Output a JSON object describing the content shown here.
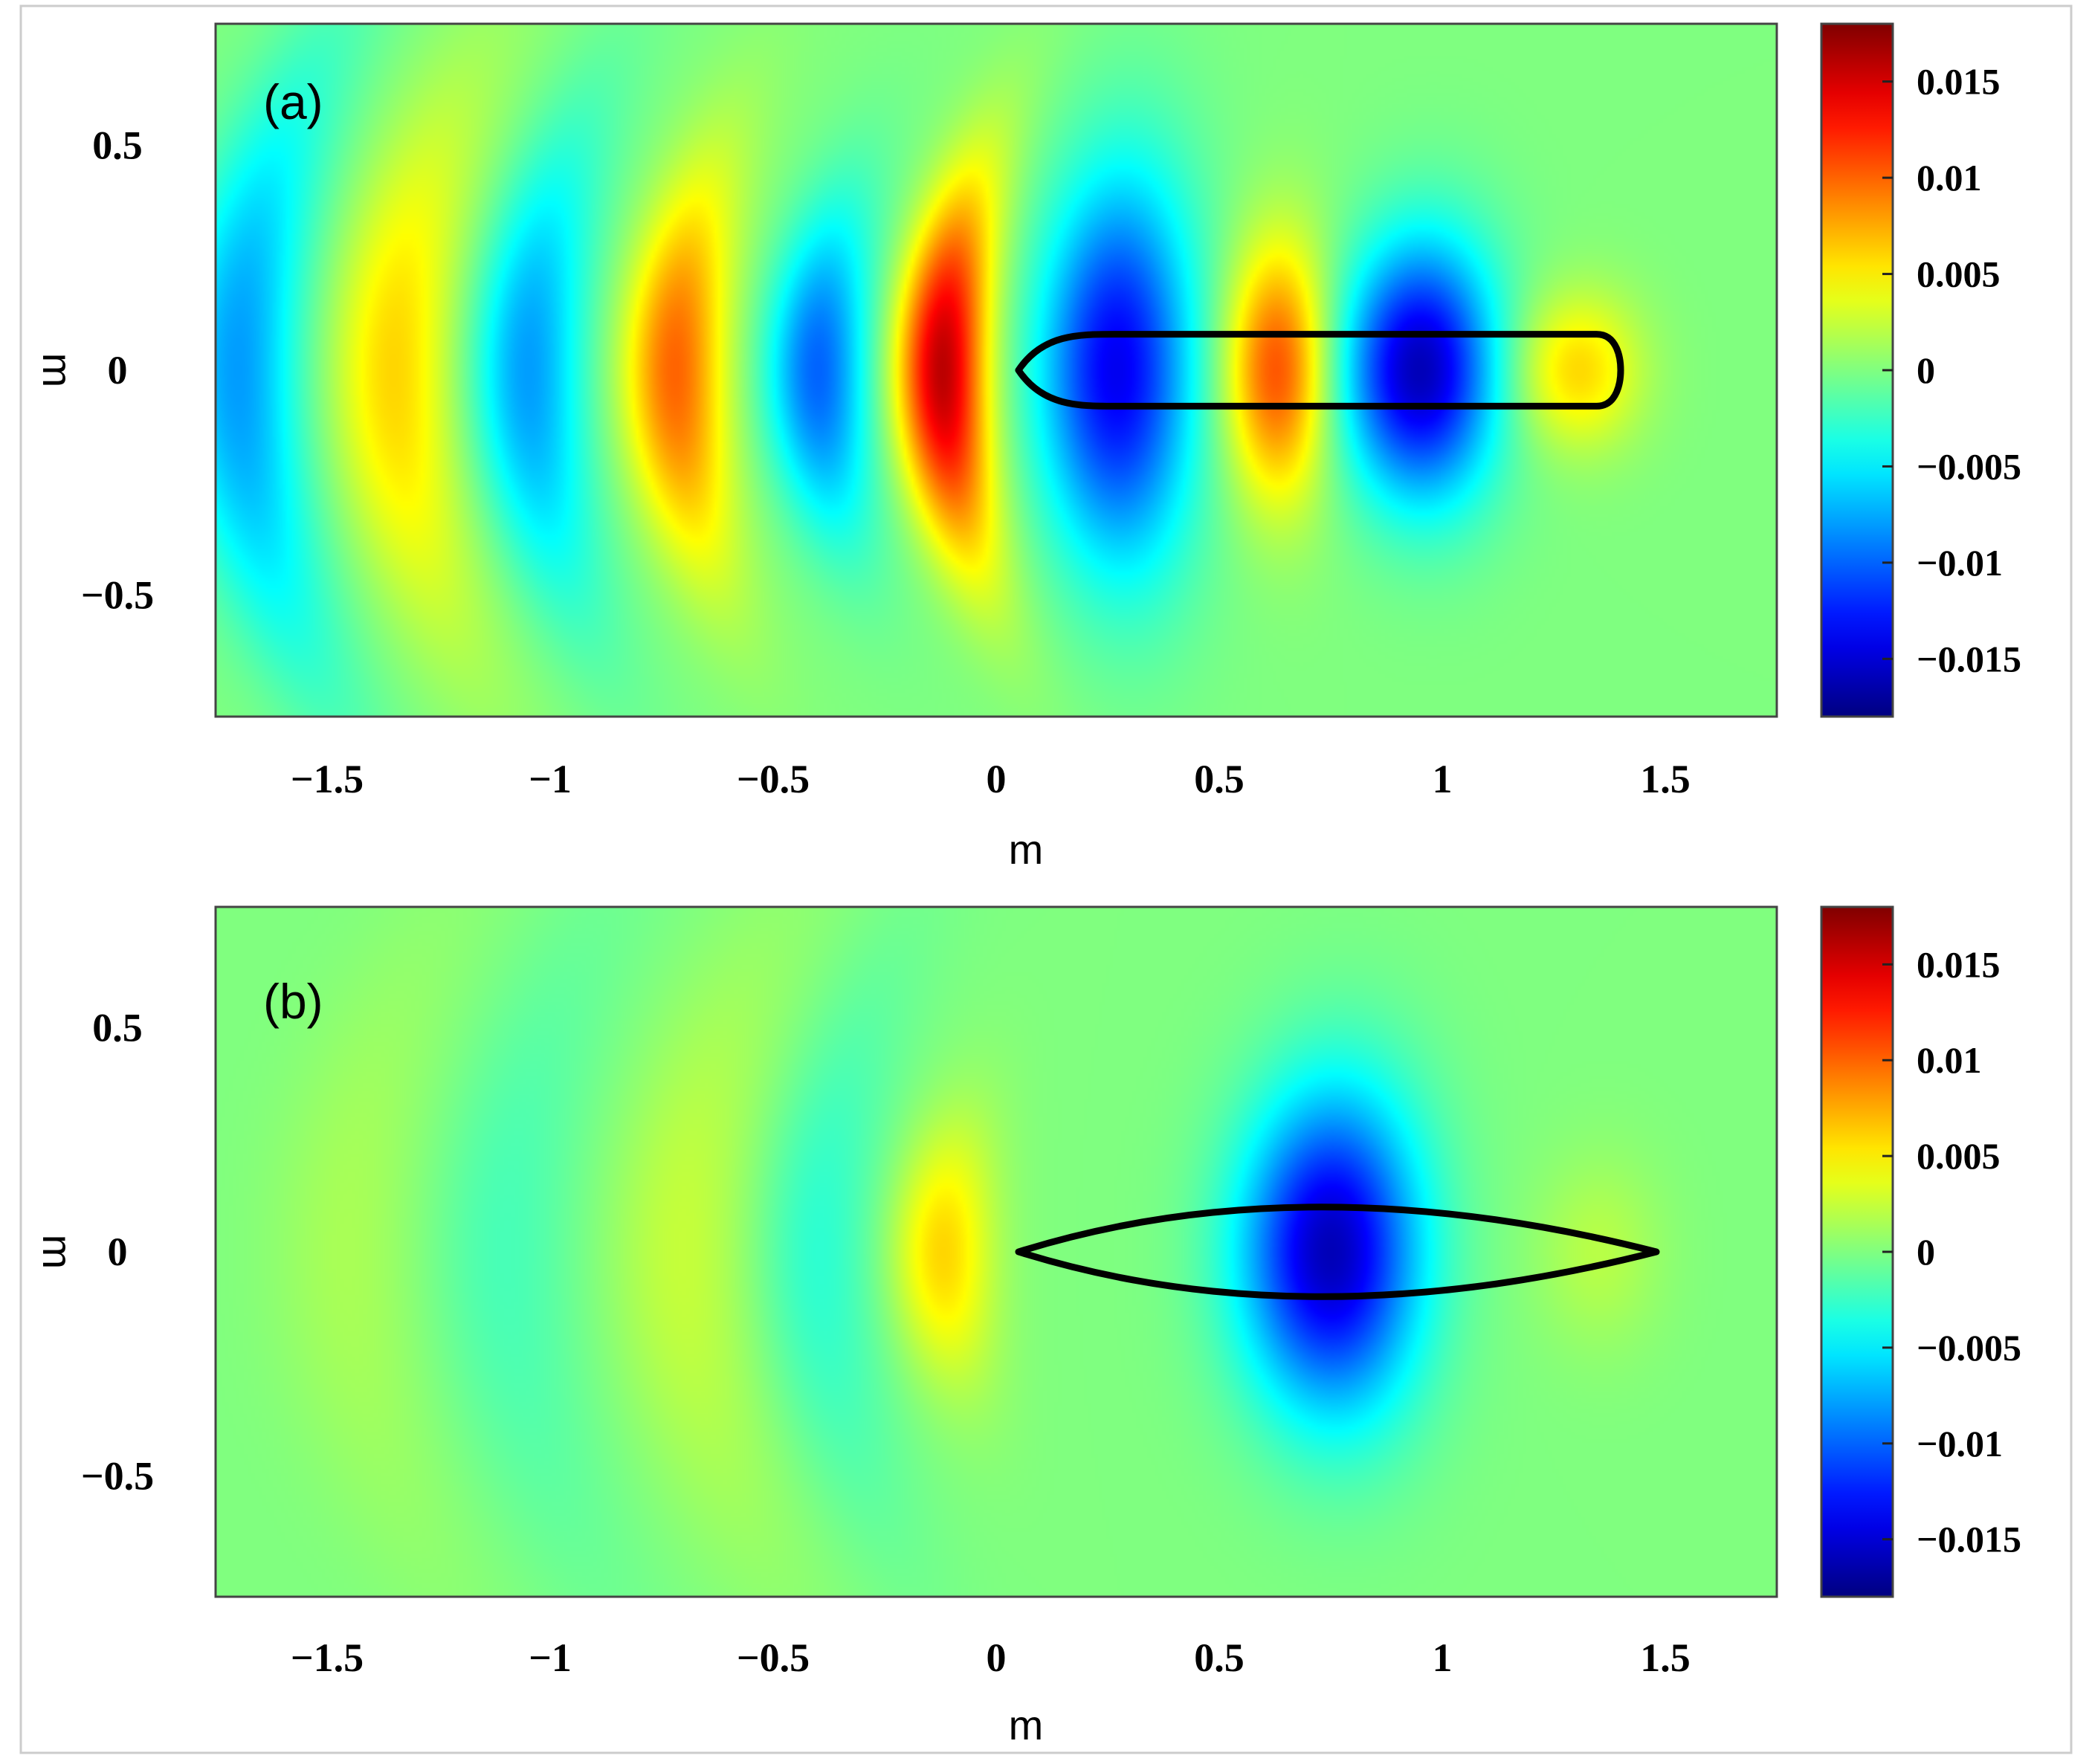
{
  "chart_data": [
    {
      "type": "heatmap",
      "panel_label": "(a)",
      "xlabel": "m",
      "ylabel": "m",
      "xlim": [
        -1.75,
        1.75
      ],
      "ylim": [
        -0.77,
        0.77
      ],
      "xticks": [
        -1.5,
        -1,
        -0.5,
        0,
        0.5,
        1,
        1.5
      ],
      "xtick_labels": [
        "−1.5",
        "−1",
        "−0.5",
        "0",
        "0.5",
        "1",
        "1.5"
      ],
      "yticks": [
        0.5,
        0,
        -0.5
      ],
      "ytick_labels": [
        "0.5",
        "0",
        "−0.5"
      ],
      "colorbar": {
        "colormap": "jet",
        "range": [
          -0.018,
          0.018
        ],
        "ticks": [
          0.015,
          0.01,
          0.005,
          0,
          -0.005,
          -0.01,
          -0.015
        ],
        "tick_labels": [
          "0.015",
          "0.01",
          "0.005",
          "0",
          "−0.005",
          "−0.01",
          "−0.015"
        ]
      },
      "field": {
        "description": "Kelvin wave pattern behind hull",
        "blobs": [
          {
            "x": -1.7,
            "y": 0,
            "sx": 0.1,
            "sy": 0.45,
            "v": -0.008
          },
          {
            "x": -1.35,
            "y": 0,
            "sx": 0.1,
            "sy": 0.4,
            "v": 0.006
          },
          {
            "x": -1.05,
            "y": 0,
            "sx": 0.09,
            "sy": 0.35,
            "v": -0.008
          },
          {
            "x": -0.72,
            "y": 0,
            "sx": 0.08,
            "sy": 0.3,
            "v": 0.01
          },
          {
            "x": -0.4,
            "y": 0,
            "sx": 0.08,
            "sy": 0.25,
            "v": -0.01
          },
          {
            "x": -0.12,
            "y": 0,
            "sx": 0.07,
            "sy": 0.28,
            "v": 0.016
          },
          {
            "x": 0.27,
            "y": 0,
            "sx": 0.12,
            "sy": 0.3,
            "v": -0.014
          },
          {
            "x": 0.63,
            "y": 0,
            "sx": 0.08,
            "sy": 0.2,
            "v": 0.011
          },
          {
            "x": 0.95,
            "y": 0,
            "sx": 0.12,
            "sy": 0.2,
            "v": -0.016
          },
          {
            "x": 1.3,
            "y": 0,
            "sx": 0.1,
            "sy": 0.12,
            "v": 0.006
          }
        ]
      },
      "hull": {
        "shape": "blunt",
        "x_start": 0.05,
        "x_end": 1.4,
        "half_width": 0.08
      }
    },
    {
      "type": "heatmap",
      "panel_label": "(b)",
      "xlabel": "m",
      "ylabel": "m",
      "xlim": [
        -1.75,
        1.75
      ],
      "ylim": [
        -0.77,
        0.77
      ],
      "xticks": [
        -1.5,
        -1,
        -0.5,
        0,
        0.5,
        1,
        1.5
      ],
      "xtick_labels": [
        "−1.5",
        "−1",
        "−0.5",
        "0",
        "0.5",
        "1",
        "1.5"
      ],
      "yticks": [
        0.5,
        0,
        -0.5
      ],
      "ytick_labels": [
        "0.5",
        "0",
        "−0.5"
      ],
      "colorbar": {
        "colormap": "jet",
        "range": [
          -0.018,
          0.018
        ],
        "ticks": [
          0.015,
          0.01,
          0.005,
          0,
          -0.005,
          -0.01,
          -0.015
        ],
        "tick_labels": [
          "0.015",
          "0.01",
          "0.005",
          "0",
          "−0.005",
          "−0.01",
          "−0.015"
        ]
      },
      "field": {
        "description": "Weak Kelvin wave pattern behind hull",
        "blobs": [
          {
            "x": -1.45,
            "y": 0,
            "sx": 0.12,
            "sy": 0.5,
            "v": 0.0015
          },
          {
            "x": -1.1,
            "y": 0,
            "sx": 0.12,
            "sy": 0.5,
            "v": -0.002
          },
          {
            "x": -0.7,
            "y": 0,
            "sx": 0.12,
            "sy": 0.45,
            "v": 0.0025
          },
          {
            "x": -0.4,
            "y": 0,
            "sx": 0.1,
            "sy": 0.4,
            "v": -0.003
          },
          {
            "x": -0.12,
            "y": 0,
            "sx": 0.08,
            "sy": 0.2,
            "v": 0.006
          },
          {
            "x": 0.75,
            "y": 0,
            "sx": 0.14,
            "sy": 0.25,
            "v": -0.016
          },
          {
            "x": 1.35,
            "y": 0,
            "sx": 0.1,
            "sy": 0.15,
            "v": 0.002
          }
        ]
      },
      "hull": {
        "shape": "slender",
        "x_start": 0.05,
        "x_end": 1.48,
        "half_width": 0.1
      }
    }
  ]
}
